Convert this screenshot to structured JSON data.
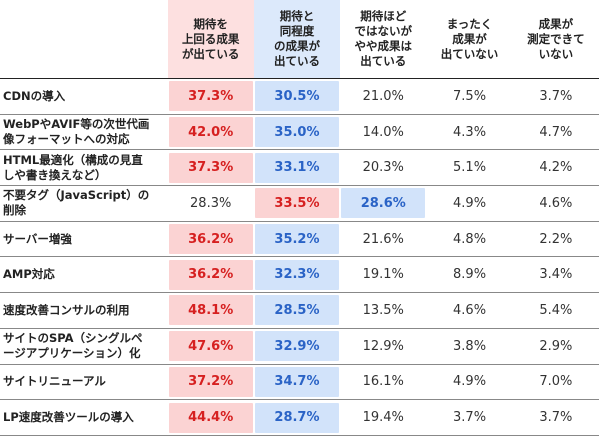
{
  "chart_data": {
    "type": "table",
    "columns": [
      "期待を\n上回る成果\nが出ている",
      "期待と\n同程度\nの成果が\n出ている",
      "期待ほど\nではないが\nやや成果は\n出ている",
      "まったく\n成果が\n出ていない",
      "成果が\n測定できて\nいない"
    ],
    "header_styles": [
      "red",
      "blue",
      "plain",
      "plain",
      "plain"
    ],
    "rows": [
      {
        "label": "CDNの導入",
        "values": [
          "37.3%",
          "30.5%",
          "21.0%",
          "7.5%",
          "3.7%"
        ],
        "highlights": [
          "red",
          "blue",
          "plain",
          "plain",
          "plain"
        ]
      },
      {
        "label": "WebPやAVIF等の次世代画\n像フォーマットへの対応",
        "values": [
          "42.0%",
          "35.0%",
          "14.0%",
          "4.3%",
          "4.7%"
        ],
        "highlights": [
          "red",
          "blue",
          "plain",
          "plain",
          "plain"
        ]
      },
      {
        "label": "HTML最適化（構成の見直\nしや書き換えなど）",
        "values": [
          "37.3%",
          "33.1%",
          "20.3%",
          "5.1%",
          "4.2%"
        ],
        "highlights": [
          "red",
          "blue",
          "plain",
          "plain",
          "plain"
        ]
      },
      {
        "label": "不要タグ（JavaScript）の\n削除",
        "values": [
          "28.3%",
          "33.5%",
          "28.6%",
          "4.9%",
          "4.6%"
        ],
        "highlights": [
          "plain",
          "red",
          "blue",
          "plain",
          "plain"
        ]
      },
      {
        "label": "サーバー増強",
        "values": [
          "36.2%",
          "35.2%",
          "21.6%",
          "4.8%",
          "2.2%"
        ],
        "highlights": [
          "red",
          "blue",
          "plain",
          "plain",
          "plain"
        ]
      },
      {
        "label": "AMP対応",
        "values": [
          "36.2%",
          "32.3%",
          "19.1%",
          "8.9%",
          "3.4%"
        ],
        "highlights": [
          "red",
          "blue",
          "plain",
          "plain",
          "plain"
        ]
      },
      {
        "label": "速度改善コンサルの利用",
        "values": [
          "48.1%",
          "28.5%",
          "13.5%",
          "4.6%",
          "5.4%"
        ],
        "highlights": [
          "red",
          "blue",
          "plain",
          "plain",
          "plain"
        ]
      },
      {
        "label": "サイトのSPA（シングルペ\nージアプリケーション）化",
        "values": [
          "47.6%",
          "32.9%",
          "12.9%",
          "3.8%",
          "2.9%"
        ],
        "highlights": [
          "red",
          "blue",
          "plain",
          "plain",
          "plain"
        ]
      },
      {
        "label": "サイトリニューアル",
        "values": [
          "37.2%",
          "34.7%",
          "16.1%",
          "4.9%",
          "7.0%"
        ],
        "highlights": [
          "red",
          "blue",
          "plain",
          "plain",
          "plain"
        ]
      },
      {
        "label": "LP速度改善ツールの導入",
        "values": [
          "44.4%",
          "28.7%",
          "19.4%",
          "3.7%",
          "3.7%"
        ],
        "highlights": [
          "red",
          "blue",
          "plain",
          "plain",
          "plain"
        ]
      }
    ]
  },
  "colors": {
    "highlight_red_bg": "#fbd3d3",
    "highlight_red_text": "#d62020",
    "highlight_blue_bg": "#d2e3fa",
    "highlight_blue_text": "#2a63c6"
  }
}
